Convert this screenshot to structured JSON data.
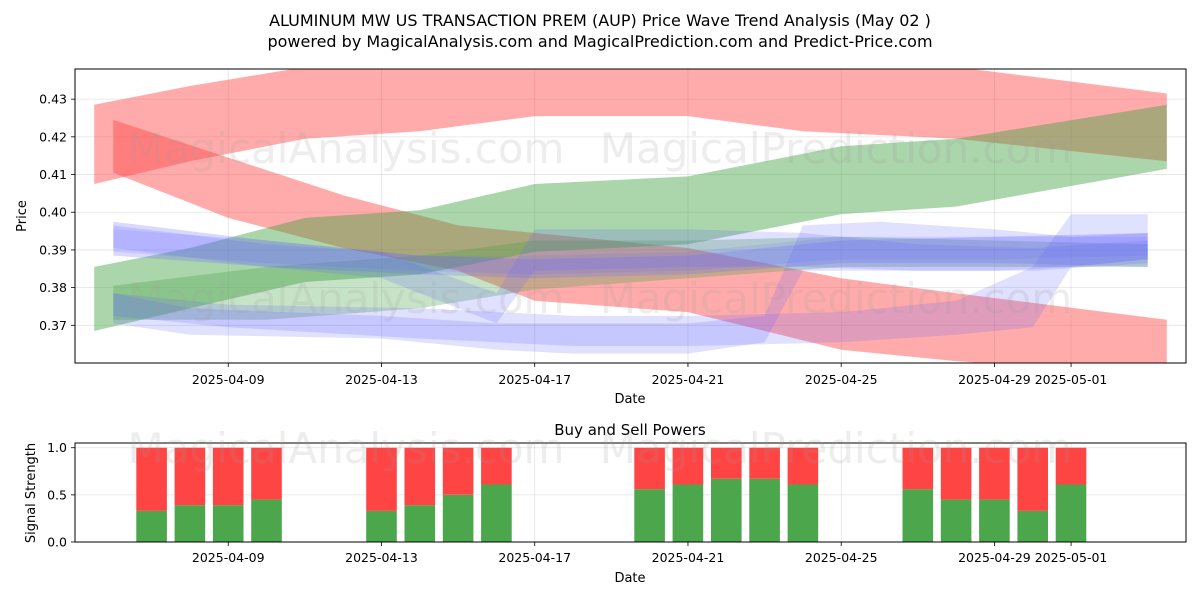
{
  "figure": {
    "title_line1": "ALUMINUM MW US TRANSACTION PREM (AUP) Price Wave Trend Analysis (May 02 )",
    "title_line2": "powered by MagicalAnalysis.com and MagicalPrediction.com and Predict-Price.com",
    "watermarks": [
      "MagicalAnalysis.com",
      "MagicalPrediction.com"
    ]
  },
  "chart_data": [
    {
      "type": "area",
      "title": "",
      "xlabel": "Date",
      "ylabel": "Price",
      "x_ticks": [
        "2025-04-09",
        "2025-04-13",
        "2025-04-17",
        "2025-04-21",
        "2025-04-25",
        "2025-04-29",
        "2025-05-01"
      ],
      "y_ticks": [
        "0.37",
        "0.38",
        "0.39",
        "0.40",
        "0.41",
        "0.42",
        "0.43"
      ],
      "xlim": [
        "2025-04-05",
        "2025-05-04"
      ],
      "ylim": [
        0.36,
        0.438
      ],
      "grid": true,
      "colors": {
        "red": "#ff4444",
        "green": "#44a244",
        "blue": "#6666ff"
      },
      "bands": [
        {
          "color": "red",
          "opacity": 0.45,
          "upper": [
            [
              "2025-04-05T12:00",
              0.4285
            ],
            [
              "2025-04-08",
              0.4335
            ],
            [
              "2025-04-11",
              0.4385
            ],
            [
              "2025-04-14",
              0.4395
            ],
            [
              "2025-04-17",
              0.4395
            ],
            [
              "2025-04-21",
              0.4395
            ],
            [
              "2025-04-25",
              0.4395
            ],
            [
              "2025-04-28",
              0.4385
            ],
            [
              "2025-05-03T12:00",
              0.4315
            ]
          ],
          "lower": [
            [
              "2025-05-03T12:00",
              0.4135
            ],
            [
              "2025-04-28",
              0.4195
            ],
            [
              "2025-04-24",
              0.4215
            ],
            [
              "2025-04-21",
              0.4255
            ],
            [
              "2025-04-17",
              0.4255
            ],
            [
              "2025-04-14",
              0.4215
            ],
            [
              "2025-04-11",
              0.4195
            ],
            [
              "2025-04-08",
              0.4135
            ],
            [
              "2025-04-05T12:00",
              0.4075
            ]
          ]
        },
        {
          "color": "red",
          "opacity": 0.45,
          "upper": [
            [
              "2025-04-06",
              0.4245
            ],
            [
              "2025-04-09",
              0.4145
            ],
            [
              "2025-04-12",
              0.4045
            ],
            [
              "2025-04-15",
              0.3965
            ],
            [
              "2025-04-17",
              0.3945
            ],
            [
              "2025-04-21",
              0.3905
            ],
            [
              "2025-04-25",
              0.3825
            ],
            [
              "2025-04-28",
              0.3785
            ],
            [
              "2025-05-03T12:00",
              0.3715
            ]
          ],
          "lower": [
            [
              "2025-05-03T12:00",
              0.3565
            ],
            [
              "2025-04-28",
              0.3605
            ],
            [
              "2025-04-25",
              0.3635
            ],
            [
              "2025-04-21",
              0.3735
            ],
            [
              "2025-04-17",
              0.3765
            ],
            [
              "2025-04-15",
              0.3845
            ],
            [
              "2025-04-12",
              0.3905
            ],
            [
              "2025-04-09",
              0.3985
            ],
            [
              "2025-04-06",
              0.4105
            ]
          ]
        },
        {
          "color": "green",
          "opacity": 0.45,
          "upper": [
            [
              "2025-04-05T12:00",
              0.3855
            ],
            [
              "2025-04-08",
              0.3905
            ],
            [
              "2025-04-11",
              0.3985
            ],
            [
              "2025-04-14",
              0.4005
            ],
            [
              "2025-04-17",
              0.4075
            ],
            [
              "2025-04-21",
              0.4095
            ],
            [
              "2025-04-25",
              0.4175
            ],
            [
              "2025-04-28",
              0.4195
            ],
            [
              "2025-05-03T12:00",
              0.4285
            ]
          ],
          "lower": [
            [
              "2025-05-03T12:00",
              0.4115
            ],
            [
              "2025-04-28",
              0.4015
            ],
            [
              "2025-04-25",
              0.3995
            ],
            [
              "2025-04-21",
              0.3915
            ],
            [
              "2025-04-17",
              0.3895
            ],
            [
              "2025-04-14",
              0.3835
            ],
            [
              "2025-04-11",
              0.3815
            ],
            [
              "2025-04-08",
              0.3745
            ],
            [
              "2025-04-05T12:00",
              0.3685
            ]
          ]
        },
        {
          "color": "green",
          "opacity": 0.3,
          "upper": [
            [
              "2025-04-06",
              0.3805
            ],
            [
              "2025-04-10",
              0.3855
            ],
            [
              "2025-04-14",
              0.3885
            ],
            [
              "2025-04-17",
              0.3925
            ],
            [
              "2025-04-21",
              0.3925
            ],
            [
              "2025-04-25",
              0.3935
            ],
            [
              "2025-04-29",
              0.3925
            ],
            [
              "2025-05-03",
              0.3915
            ]
          ],
          "lower": [
            [
              "2025-05-03",
              0.3855
            ],
            [
              "2025-04-29",
              0.3855
            ],
            [
              "2025-04-25",
              0.3855
            ],
            [
              "2025-04-21",
              0.3825
            ],
            [
              "2025-04-17",
              0.3795
            ],
            [
              "2025-04-14",
              0.3745
            ],
            [
              "2025-04-10",
              0.3715
            ],
            [
              "2025-04-06",
              0.3715
            ]
          ]
        },
        {
          "color": "blue",
          "opacity": 0.25,
          "upper": [
            [
              "2025-04-06",
              0.3975
            ],
            [
              "2025-04-10",
              0.3925
            ],
            [
              "2025-04-14",
              0.3885
            ],
            [
              "2025-04-17",
              0.3875
            ],
            [
              "2025-04-21",
              0.3885
            ],
            [
              "2025-04-25",
              0.3925
            ],
            [
              "2025-04-29",
              0.3935
            ],
            [
              "2025-05-03",
              0.3945
            ]
          ],
          "lower": [
            [
              "2025-05-03",
              0.3855
            ],
            [
              "2025-04-29",
              0.3865
            ],
            [
              "2025-04-25",
              0.3865
            ],
            [
              "2025-04-21",
              0.3835
            ],
            [
              "2025-04-17",
              0.3825
            ],
            [
              "2025-04-14",
              0.3835
            ],
            [
              "2025-04-10",
              0.3855
            ],
            [
              "2025-04-06",
              0.3885
            ]
          ]
        },
        {
          "color": "blue",
          "opacity": 0.2,
          "upper": [
            [
              "2025-04-06",
              0.3785
            ],
            [
              "2025-04-08",
              0.3745
            ],
            [
              "2025-04-13",
              0.3725
            ],
            [
              "2025-04-16",
              0.3705
            ],
            [
              "2025-04-18",
              0.3705
            ],
            [
              "2025-04-21",
              0.3705
            ],
            [
              "2025-04-23",
              0.3725
            ],
            [
              "2025-04-24",
              0.3965
            ],
            [
              "2025-04-26",
              0.3975
            ],
            [
              "2025-04-29",
              0.3955
            ],
            [
              "2025-05-01",
              0.3935
            ],
            [
              "2025-05-03",
              0.3945
            ]
          ],
          "lower": [
            [
              "2025-05-03",
              0.3875
            ],
            [
              "2025-05-01",
              0.3855
            ],
            [
              "2025-04-29",
              0.3845
            ],
            [
              "2025-04-26",
              0.3845
            ],
            [
              "2025-04-24",
              0.3845
            ],
            [
              "2025-04-23",
              0.3655
            ],
            [
              "2025-04-21",
              0.3625
            ],
            [
              "2025-04-18",
              0.3625
            ],
            [
              "2025-04-16",
              0.3635
            ],
            [
              "2025-04-13",
              0.3665
            ],
            [
              "2025-04-08",
              0.3675
            ],
            [
              "2025-04-06",
              0.3705
            ]
          ]
        },
        {
          "color": "blue",
          "opacity": 0.2,
          "upper": [
            [
              "2025-04-06",
              0.3965
            ],
            [
              "2025-04-10",
              0.3915
            ],
            [
              "2025-04-13",
              0.3895
            ],
            [
              "2025-04-16",
              0.3785
            ],
            [
              "2025-04-17",
              0.3955
            ],
            [
              "2025-04-21",
              0.3955
            ],
            [
              "2025-04-24",
              0.3945
            ],
            [
              "2025-04-27",
              0.3915
            ],
            [
              "2025-04-30",
              0.3905
            ],
            [
              "2025-05-03",
              0.3925
            ]
          ],
          "lower": [
            [
              "2025-05-03",
              0.3865
            ],
            [
              "2025-04-30",
              0.3845
            ],
            [
              "2025-04-27",
              0.3845
            ],
            [
              "2025-04-24",
              0.3855
            ],
            [
              "2025-04-21",
              0.3855
            ],
            [
              "2025-04-17",
              0.3845
            ],
            [
              "2025-04-16",
              0.3705
            ],
            [
              "2025-04-13",
              0.3825
            ],
            [
              "2025-04-10",
              0.3855
            ],
            [
              "2025-04-06",
              0.3905
            ]
          ]
        },
        {
          "color": "blue",
          "opacity": 0.2,
          "upper": [
            [
              "2025-04-06",
              0.3785
            ],
            [
              "2025-04-09",
              0.3755
            ],
            [
              "2025-04-14",
              0.3745
            ],
            [
              "2025-04-18",
              0.3725
            ],
            [
              "2025-04-21",
              0.3725
            ],
            [
              "2025-04-25",
              0.3735
            ],
            [
              "2025-04-28",
              0.3765
            ],
            [
              "2025-04-30",
              0.3855
            ],
            [
              "2025-05-01",
              0.3995
            ],
            [
              "2025-05-03",
              0.3995
            ]
          ],
          "lower": [
            [
              "2025-05-03",
              0.3875
            ],
            [
              "2025-05-01",
              0.3855
            ],
            [
              "2025-04-30",
              0.3695
            ],
            [
              "2025-04-28",
              0.3675
            ],
            [
              "2025-04-25",
              0.3655
            ],
            [
              "2025-04-21",
              0.3645
            ],
            [
              "2025-04-18",
              0.3645
            ],
            [
              "2025-04-14",
              0.3665
            ],
            [
              "2025-04-09",
              0.3695
            ],
            [
              "2025-04-06",
              0.3725
            ]
          ]
        },
        {
          "color": "blue",
          "opacity": 0.15,
          "upper": [
            [
              "2025-04-06",
              0.3955
            ],
            [
              "2025-04-10",
              0.3925
            ],
            [
              "2025-04-14",
              0.3885
            ],
            [
              "2025-04-17",
              0.3885
            ],
            [
              "2025-04-21",
              0.3895
            ],
            [
              "2025-04-25",
              0.3935
            ],
            [
              "2025-04-29",
              0.3935
            ],
            [
              "2025-05-03",
              0.3935
            ]
          ],
          "lower": [
            [
              "2025-05-03",
              0.3885
            ],
            [
              "2025-04-29",
              0.3875
            ],
            [
              "2025-04-25",
              0.3875
            ],
            [
              "2025-04-21",
              0.3845
            ],
            [
              "2025-04-17",
              0.3835
            ],
            [
              "2025-04-14",
              0.3845
            ],
            [
              "2025-04-10",
              0.3865
            ],
            [
              "2025-04-06",
              0.3895
            ]
          ]
        }
      ]
    },
    {
      "type": "bar",
      "title": "Buy and Sell Powers",
      "xlabel": "Date",
      "ylabel": "Signal Strength",
      "x_ticks": [
        "2025-04-09",
        "2025-04-13",
        "2025-04-17",
        "2025-04-21",
        "2025-04-25",
        "2025-04-29",
        "2025-05-01"
      ],
      "y_ticks": [
        "0.0",
        "0.5",
        "1.0"
      ],
      "xlim": [
        "2025-04-05",
        "2025-05-04"
      ],
      "ylim": [
        0,
        1.05
      ],
      "grid": true,
      "colors": {
        "buy": "#4ca64c",
        "sell": "#ff4444"
      },
      "series": [
        {
          "name": "Buy",
          "color": "buy"
        },
        {
          "name": "Sell",
          "color": "sell"
        }
      ],
      "dates": [
        "2025-04-07",
        "2025-04-08",
        "2025-04-09",
        "2025-04-10",
        "2025-04-13",
        "2025-04-14",
        "2025-04-15",
        "2025-04-16",
        "2025-04-20",
        "2025-04-21",
        "2025-04-22",
        "2025-04-23",
        "2025-04-24",
        "2025-04-27",
        "2025-04-28",
        "2025-04-29",
        "2025-04-30",
        "2025-05-01"
      ],
      "buy": [
        0.33,
        0.39,
        0.39,
        0.45,
        0.33,
        0.39,
        0.5,
        0.61,
        0.56,
        0.61,
        0.67,
        0.67,
        0.61,
        0.56,
        0.45,
        0.45,
        0.33,
        0.61
      ],
      "total": 1.0
    }
  ]
}
